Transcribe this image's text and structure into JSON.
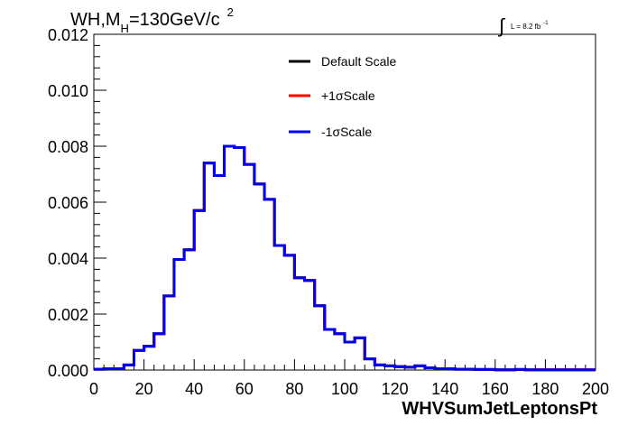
{
  "chart_data": {
    "type": "line",
    "title": {
      "prefix": "WH,M",
      "subscript": "H",
      "mid": "=130GeV/c",
      "superscript": "2"
    },
    "luminosity": {
      "integral_sign": "∫",
      "text": "L = 8.2 fb",
      "superscript": "-1"
    },
    "xlabel": "WHVSumJetLeptonsPt",
    "ylabel": "",
    "xlim": [
      0,
      200
    ],
    "ylim": [
      0,
      0.012
    ],
    "x_ticks": [
      0,
      20,
      40,
      60,
      80,
      100,
      120,
      140,
      160,
      180,
      200
    ],
    "x_tick_labels": [
      "0",
      "20",
      "40",
      "60",
      "80",
      "100",
      "120",
      "140",
      "160",
      "180",
      "200"
    ],
    "y_ticks": [
      0,
      0.002,
      0.004,
      0.006,
      0.008,
      0.01,
      0.012
    ],
    "y_tick_labels": [
      "0.000",
      "0.002",
      "0.004",
      "0.006",
      "0.008",
      "0.010",
      "0.012"
    ],
    "grid": false,
    "legend_placement": "top-right",
    "bin_width": 4,
    "bin_edges_start": 0,
    "series": [
      {
        "name": "Default Scale",
        "color": "#000000",
        "values": [
          3e-05,
          5e-05,
          5e-05,
          0.00018,
          0.0007,
          0.00085,
          0.0013,
          0.00265,
          0.00395,
          0.0043,
          0.0057,
          0.0074,
          0.00695,
          0.008,
          0.00795,
          0.00735,
          0.00665,
          0.0061,
          0.00445,
          0.0041,
          0.0033,
          0.0032,
          0.0023,
          0.00145,
          0.0013,
          0.001,
          0.00115,
          0.0004,
          0.00018,
          0.00015,
          0.00012,
          0.0001,
          0.00015,
          8e-05,
          5e-05,
          5e-05,
          3e-05,
          3e-05,
          2e-05,
          2e-05,
          1e-05,
          1e-05,
          2e-05,
          1e-05,
          1e-05,
          1e-05,
          1e-05,
          1e-05,
          1e-05,
          1e-05
        ]
      },
      {
        "name": "+1σScale",
        "color": "#ff0000",
        "values": [
          3e-05,
          5e-05,
          5e-05,
          0.00018,
          0.0007,
          0.00085,
          0.0013,
          0.00265,
          0.00395,
          0.0043,
          0.0057,
          0.0074,
          0.00695,
          0.008,
          0.00795,
          0.00735,
          0.00665,
          0.0061,
          0.00445,
          0.0041,
          0.0033,
          0.0032,
          0.0023,
          0.00145,
          0.0013,
          0.001,
          0.00115,
          0.0004,
          0.00018,
          0.00015,
          0.00012,
          0.0001,
          0.00015,
          8e-05,
          5e-05,
          5e-05,
          3e-05,
          3e-05,
          2e-05,
          2e-05,
          1e-05,
          1e-05,
          2e-05,
          1e-05,
          1e-05,
          1e-05,
          1e-05,
          1e-05,
          1e-05,
          1e-05
        ]
      },
      {
        "name": "-1σScale",
        "color": "#0000ee",
        "values": [
          3e-05,
          5e-05,
          5e-05,
          0.00018,
          0.0007,
          0.00085,
          0.0013,
          0.00265,
          0.00395,
          0.0043,
          0.0057,
          0.0074,
          0.00695,
          0.008,
          0.00795,
          0.00735,
          0.00665,
          0.0061,
          0.00445,
          0.0041,
          0.0033,
          0.0032,
          0.0023,
          0.00145,
          0.0013,
          0.001,
          0.00115,
          0.0004,
          0.00018,
          0.00015,
          0.00012,
          0.0001,
          0.00015,
          8e-05,
          5e-05,
          5e-05,
          3e-05,
          3e-05,
          2e-05,
          2e-05,
          1e-05,
          1e-05,
          2e-05,
          1e-05,
          1e-05,
          1e-05,
          1e-05,
          1e-05,
          1e-05,
          1e-05
        ]
      }
    ]
  }
}
